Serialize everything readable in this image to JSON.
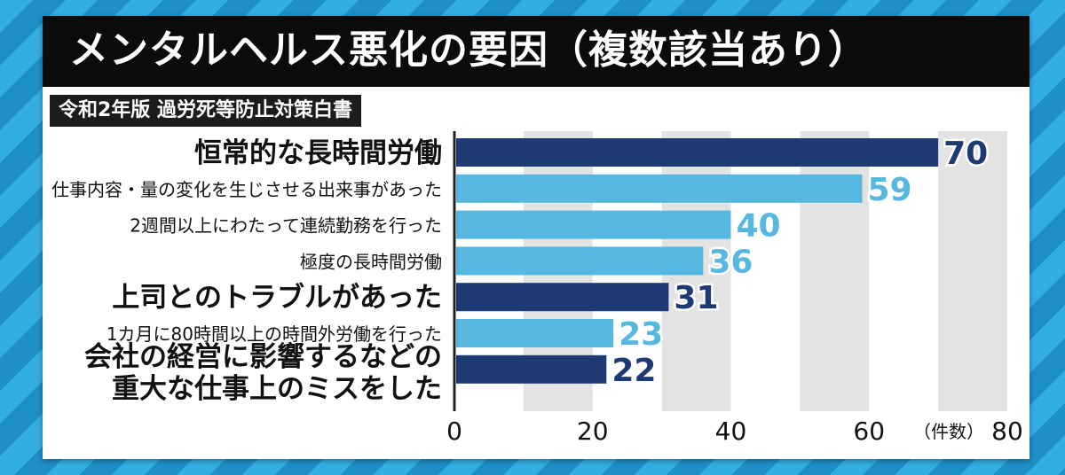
{
  "header": {
    "title": "メンタルヘルス悪化の要因（複数該当あり）",
    "source": "令和2年版 過労死等防止対策白書"
  },
  "colors": {
    "dark_bar": "#1e3a74",
    "light_bar": "#56b7e0",
    "band_gray": "#e3e3e3",
    "background_stripe": "#2a9fd6"
  },
  "chart_data": {
    "type": "bar",
    "orientation": "horizontal",
    "title": "メンタルヘルス悪化の要因（複数該当あり）",
    "xlabel": "（件数）",
    "xlim": [
      0,
      80
    ],
    "xticks": [
      0,
      20,
      40,
      60,
      80
    ],
    "categories": [
      {
        "label": [
          "恒常的な長時間労働"
        ],
        "value": 70,
        "emphasis": true
      },
      {
        "label": [
          "仕事内容・量の変化を生じさせる出来事があった"
        ],
        "value": 59,
        "emphasis": false
      },
      {
        "label": [
          "2週間以上にわたって連続勤務を行った"
        ],
        "value": 40,
        "emphasis": false
      },
      {
        "label": [
          "極度の長時間労働"
        ],
        "value": 36,
        "emphasis": false
      },
      {
        "label": [
          "上司とのトラブルがあった"
        ],
        "value": 31,
        "emphasis": true
      },
      {
        "label": [
          "1カ月に80時間以上の時間外労働を行った"
        ],
        "value": 23,
        "emphasis": false
      },
      {
        "label": [
          "会社の経営に影響するなどの",
          "重大な仕事上のミスをした"
        ],
        "value": 22,
        "emphasis": true
      }
    ],
    "grid": "alternating vertical bands"
  }
}
